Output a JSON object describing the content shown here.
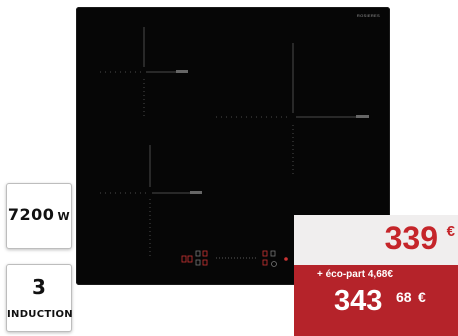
{
  "brand": "ROSIERES",
  "power_badge": {
    "value": "7200",
    "unit": "W"
  },
  "zones_badge": {
    "count": "3",
    "label": "INDUCTION"
  },
  "price": {
    "main": "339",
    "main_currency": "€",
    "eco_part": "+ éco-part 4,68€",
    "total_integer": "343",
    "total_cents": "68",
    "total_currency": "€"
  },
  "colors": {
    "price_red": "#c5252a",
    "price_band": "#b5232a",
    "hob_black": "#060606"
  },
  "icons": [
    "touch-control-icons"
  ]
}
